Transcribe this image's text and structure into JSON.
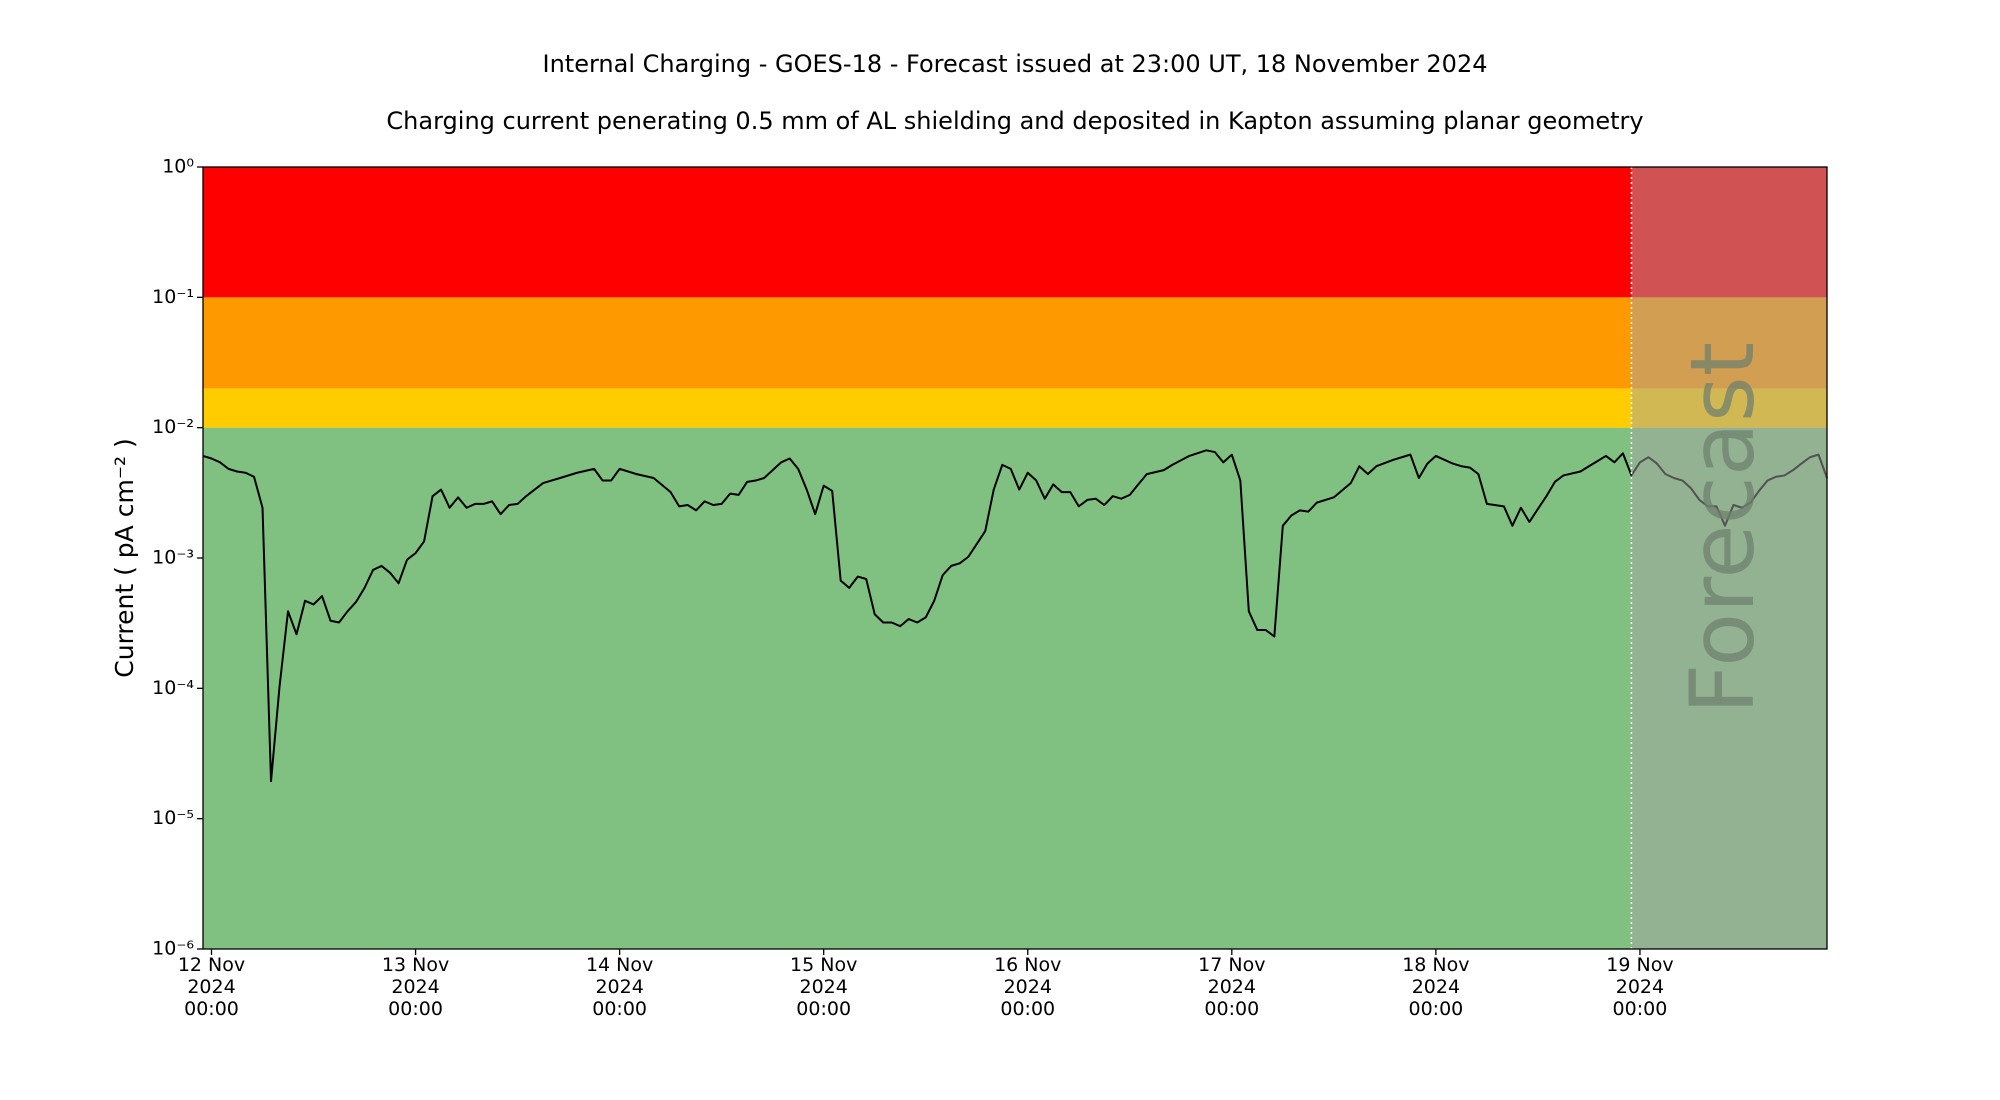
{
  "chart_data": {
    "type": "line",
    "title": "Internal Charging - GOES-18 - Forecast issued at 23:00 UT, 18 November 2024",
    "subtitle": "Charging current penerating 0.5 mm of AL shielding and deposited in Kapton assuming planar geometry",
    "y_label": "Current ( pA cm⁻² )",
    "log_y": true,
    "color": "#000000",
    "bands": [
      {
        "from": 1e-06,
        "to": 0.01,
        "color": "#80c080"
      },
      {
        "from": 0.01,
        "to": 0.02,
        "color": "#ffcc00"
      },
      {
        "from": 0.02,
        "to": 0.1,
        "color": "#ff9900"
      },
      {
        "from": 0.1,
        "to": 1,
        "color": "#ff0000"
      }
    ],
    "forecast": {
      "start": "2024-11-18 23:00",
      "label": "Forecast",
      "color": "rgba(164,164,164,0.5)"
    },
    "xlim": [
      "2024-11-11 23:00",
      "2024-11-19 22:00"
    ],
    "xticks": [
      {
        "value": "2024-11-12 00:00",
        "label": "12 Nov\n2024\n00:00"
      },
      {
        "value": "2024-11-13 00:00",
        "label": "13 Nov\n2024\n00:00"
      },
      {
        "value": "2024-11-14 00:00",
        "label": "14 Nov\n2024\n00:00"
      },
      {
        "value": "2024-11-15 00:00",
        "label": "15 Nov\n2024\n00:00"
      },
      {
        "value": "2024-11-16 00:00",
        "label": "16 Nov\n2024\n00:00"
      },
      {
        "value": "2024-11-17 00:00",
        "label": "17 Nov\n2024\n00:00"
      },
      {
        "value": "2024-11-18 00:00",
        "label": "18 Nov\n2024\n00:00"
      },
      {
        "value": "2024-11-19 00:00",
        "label": "19 Nov\n2024\n00:00"
      }
    ],
    "ylim": [
      1e-06,
      1
    ],
    "yticks": [
      {
        "value": 1e-06,
        "label": "10⁻⁶"
      },
      {
        "value": 1e-05,
        "label": "10⁻⁵"
      },
      {
        "value": 0.0001,
        "label": "10⁻⁴"
      },
      {
        "value": 0.001,
        "label": "10⁻³"
      },
      {
        "value": 0.01,
        "label": "10⁻²"
      },
      {
        "value": 0.1,
        "label": "10⁻¹"
      },
      {
        "value": 1,
        "label": "10⁰"
      }
    ],
    "x": [
      "2024-11-11 23:00",
      "2024-11-12 00:00",
      "2024-11-12 01:00",
      "2024-11-12 02:00",
      "2024-11-12 03:00",
      "2024-11-12 04:00",
      "2024-11-12 05:00",
      "2024-11-12 06:00",
      "2024-11-12 07:00",
      "2024-11-12 08:00",
      "2024-11-12 09:00",
      "2024-11-12 10:00",
      "2024-11-12 11:00",
      "2024-11-12 12:00",
      "2024-11-12 13:00",
      "2024-11-12 14:00",
      "2024-11-12 15:00",
      "2024-11-12 16:00",
      "2024-11-12 17:00",
      "2024-11-12 18:00",
      "2024-11-12 19:00",
      "2024-11-12 20:00",
      "2024-11-12 21:00",
      "2024-11-12 22:00",
      "2024-11-12 23:00",
      "2024-11-13 00:00",
      "2024-11-13 01:00",
      "2024-11-13 02:00",
      "2024-11-13 03:00",
      "2024-11-13 04:00",
      "2024-11-13 05:00",
      "2024-11-13 06:00",
      "2024-11-13 07:00",
      "2024-11-13 08:00",
      "2024-11-13 09:00",
      "2024-11-13 10:00",
      "2024-11-13 11:00",
      "2024-11-13 12:00",
      "2024-11-13 13:00",
      "2024-11-13 15:00",
      "2024-11-13 17:00",
      "2024-11-13 19:00",
      "2024-11-13 21:00",
      "2024-11-13 22:00",
      "2024-11-13 23:00",
      "2024-11-14 00:00",
      "2024-11-14 02:00",
      "2024-11-14 04:00",
      "2024-11-14 06:00",
      "2024-11-14 07:00",
      "2024-11-14 08:00",
      "2024-11-14 09:00",
      "2024-11-14 10:00",
      "2024-11-14 11:00",
      "2024-11-14 12:00",
      "2024-11-14 13:00",
      "2024-11-14 14:00",
      "2024-11-14 15:00",
      "2024-11-14 16:00",
      "2024-11-14 17:00",
      "2024-11-14 18:00",
      "2024-11-14 19:00",
      "2024-11-14 20:00",
      "2024-11-14 21:00",
      "2024-11-14 22:00",
      "2024-11-14 23:00",
      "2024-11-15 00:00",
      "2024-11-15 01:00",
      "2024-11-15 02:00",
      "2024-11-15 03:00",
      "2024-11-15 04:00",
      "2024-11-15 05:00",
      "2024-11-15 06:00",
      "2024-11-15 07:00",
      "2024-11-15 08:00",
      "2024-11-15 09:00",
      "2024-11-15 10:00",
      "2024-11-15 11:00",
      "2024-11-15 12:00",
      "2024-11-15 13:00",
      "2024-11-15 14:00",
      "2024-11-15 15:00",
      "2024-11-15 16:00",
      "2024-11-15 17:00",
      "2024-11-15 18:00",
      "2024-11-15 19:00",
      "2024-11-15 20:00",
      "2024-11-15 21:00",
      "2024-11-15 22:00",
      "2024-11-15 23:00",
      "2024-11-16 00:00",
      "2024-11-16 01:00",
      "2024-11-16 02:00",
      "2024-11-16 03:00",
      "2024-11-16 04:00",
      "2024-11-16 05:00",
      "2024-11-16 06:00",
      "2024-11-16 07:00",
      "2024-11-16 08:00",
      "2024-11-16 09:00",
      "2024-11-16 10:00",
      "2024-11-16 11:00",
      "2024-11-16 12:00",
      "2024-11-16 13:00",
      "2024-11-16 14:00",
      "2024-11-16 16:00",
      "2024-11-16 17:00",
      "2024-11-16 19:00",
      "2024-11-16 21:00",
      "2024-11-16 22:00",
      "2024-11-16 23:00",
      "2024-11-17 00:00",
      "2024-11-17 01:00",
      "2024-11-17 02:00",
      "2024-11-17 03:00",
      "2024-11-17 04:00",
      "2024-11-17 05:00",
      "2024-11-17 06:00",
      "2024-11-17 07:00",
      "2024-11-17 08:00",
      "2024-11-17 09:00",
      "2024-11-17 10:00",
      "2024-11-17 12:00",
      "2024-11-17 14:00",
      "2024-11-17 15:00",
      "2024-11-17 16:00",
      "2024-11-17 17:00",
      "2024-11-17 19:00",
      "2024-11-17 21:00",
      "2024-11-17 22:00",
      "2024-11-17 23:00",
      "2024-11-18 00:00",
      "2024-11-18 01:00",
      "2024-11-18 02:00",
      "2024-11-18 03:00",
      "2024-11-18 04:00",
      "2024-11-18 05:00",
      "2024-11-18 06:00",
      "2024-11-18 08:00",
      "2024-11-18 09:00",
      "2024-11-18 10:00",
      "2024-11-18 11:00",
      "2024-11-18 12:00",
      "2024-11-18 13:00",
      "2024-11-18 14:00",
      "2024-11-18 15:00",
      "2024-11-18 17:00",
      "2024-11-18 18:00",
      "2024-11-18 19:00",
      "2024-11-18 20:00",
      "2024-11-18 21:00",
      "2024-11-18 22:00",
      "2024-11-18 23:00",
      "2024-11-19 00:00",
      "2024-11-19 01:00",
      "2024-11-19 02:00",
      "2024-11-19 03:00",
      "2024-11-19 04:00",
      "2024-11-19 05:00",
      "2024-11-19 06:00",
      "2024-11-19 07:00",
      "2024-11-19 08:00",
      "2024-11-19 09:00",
      "2024-11-19 10:00",
      "2024-11-19 11:00",
      "2024-11-19 12:00",
      "2024-11-19 13:00",
      "2024-11-19 14:00",
      "2024-11-19 15:00",
      "2024-11-19 16:00",
      "2024-11-19 17:00",
      "2024-11-19 18:00",
      "2024-11-19 19:00",
      "2024-11-19 20:00",
      "2024-11-19 21:00",
      "2024-11-19 22:00"
    ],
    "values": [
      0.00607,
      0.0058,
      0.00542,
      0.00483,
      0.00461,
      0.00451,
      0.0042,
      0.00243,
      1.94e-05,
      0.000103,
      0.00039,
      0.00026,
      0.00047,
      0.00044,
      0.00051,
      0.00033,
      0.00032,
      0.00039,
      0.00046,
      0.00059,
      0.00081,
      0.00087,
      0.00077,
      0.00064,
      0.00097,
      0.00109,
      0.00134,
      0.00298,
      0.00335,
      0.00243,
      0.00292,
      0.00243,
      0.0026,
      0.0026,
      0.00272,
      0.00217,
      0.00255,
      0.0026,
      0.00298,
      0.00376,
      0.00411,
      0.00451,
      0.00483,
      0.00393,
      0.00393,
      0.00483,
      0.0044,
      0.00411,
      0.0032,
      0.00249,
      0.00255,
      0.00232,
      0.00272,
      0.00255,
      0.0026,
      0.00312,
      0.00305,
      0.00384,
      0.00393,
      0.00411,
      0.00472,
      0.00542,
      0.0058,
      0.00483,
      0.00335,
      0.00217,
      0.00359,
      0.00327,
      0.00067,
      0.00059,
      0.00072,
      0.00069,
      0.00037,
      0.00032,
      0.00032,
      0.0003,
      0.00034,
      0.00032,
      0.00035,
      0.00047,
      0.00074,
      0.00087,
      0.00091,
      0.00102,
      0.00128,
      0.00161,
      0.00335,
      0.00518,
      0.00483,
      0.00335,
      0.00451,
      0.00393,
      0.00285,
      0.00367,
      0.0032,
      0.0032,
      0.00249,
      0.00279,
      0.00285,
      0.00255,
      0.00298,
      0.00285,
      0.00305,
      0.00367,
      0.0044,
      0.00472,
      0.00518,
      0.00607,
      0.0067,
      0.0065,
      0.00542,
      0.00621,
      0.00393,
      0.00039,
      0.00028,
      0.00028,
      0.00025,
      0.00177,
      0.00212,
      0.00232,
      0.00227,
      0.00266,
      0.00292,
      0.00376,
      0.00506,
      0.0044,
      0.00506,
      0.00567,
      0.00621,
      0.00411,
      0.0053,
      0.00607,
      0.00567,
      0.0053,
      0.00506,
      0.00494,
      0.0044,
      0.0026,
      0.00249,
      0.00177,
      0.00243,
      0.00189,
      0.00238,
      0.00298,
      0.00384,
      0.0043,
      0.00461,
      0.00506,
      0.00554,
      0.00607,
      0.00542,
      0.00635,
      0.0043,
      0.00542,
      0.00593,
      0.0053,
      0.0044,
      0.00411,
      0.00393,
      0.00343,
      0.00279,
      0.00249,
      0.00249,
      0.00177,
      0.00255,
      0.00243,
      0.00266,
      0.00327,
      0.00393,
      0.0042,
      0.0043,
      0.00472,
      0.0053,
      0.00593,
      0.00621,
      0.00411
    ]
  }
}
